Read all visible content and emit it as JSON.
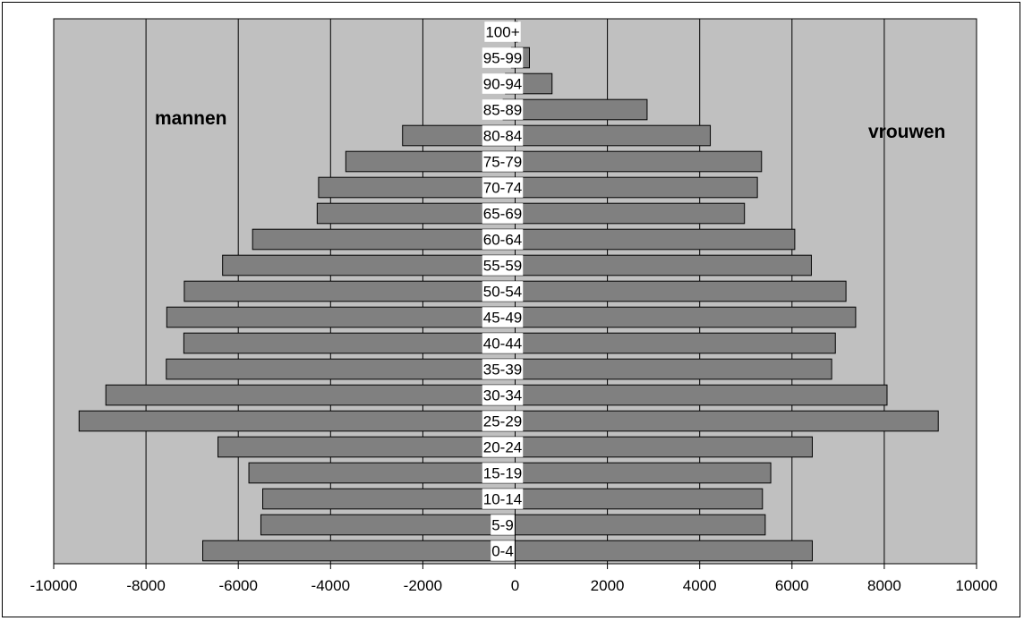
{
  "chart_data": {
    "type": "bar",
    "orientation": "horizontal",
    "layout": "population-pyramid",
    "grid": true,
    "xlim": [
      -10000,
      10000
    ],
    "x_ticks": [
      -10000,
      -8000,
      -6000,
      -4000,
      -2000,
      0,
      2000,
      4000,
      6000,
      8000,
      10000
    ],
    "categories": [
      "0-4",
      "5-9",
      "10-14",
      "15-19",
      "20-24",
      "25-29",
      "30-34",
      "35-39",
      "40-44",
      "45-49",
      "50-54",
      "55-59",
      "60-64",
      "65-69",
      "70-74",
      "75-79",
      "80-84",
      "85-89",
      "90-94",
      "95-99",
      "100+"
    ],
    "series": [
      {
        "name": "mannen",
        "values": [
          -6770,
          -5510,
          -5470,
          -5770,
          -6440,
          -9450,
          -8870,
          -7560,
          -7180,
          -7550,
          -7170,
          -6340,
          -5690,
          -4290,
          -4260,
          -3670,
          -2440,
          -260,
          -210,
          -80,
          -10
        ]
      },
      {
        "name": "vrouwen",
        "values": [
          6440,
          5420,
          5360,
          5540,
          6440,
          9170,
          8060,
          6860,
          6940,
          7380,
          7170,
          6420,
          6060,
          4970,
          5250,
          5340,
          4230,
          2860,
          800,
          310,
          50
        ]
      }
    ],
    "colors": {
      "plot_bg": "#c0c0c0",
      "bar": "#808080",
      "bar_stroke": "#000000",
      "grid": "#000000",
      "label_bg": "#ffffff"
    }
  }
}
